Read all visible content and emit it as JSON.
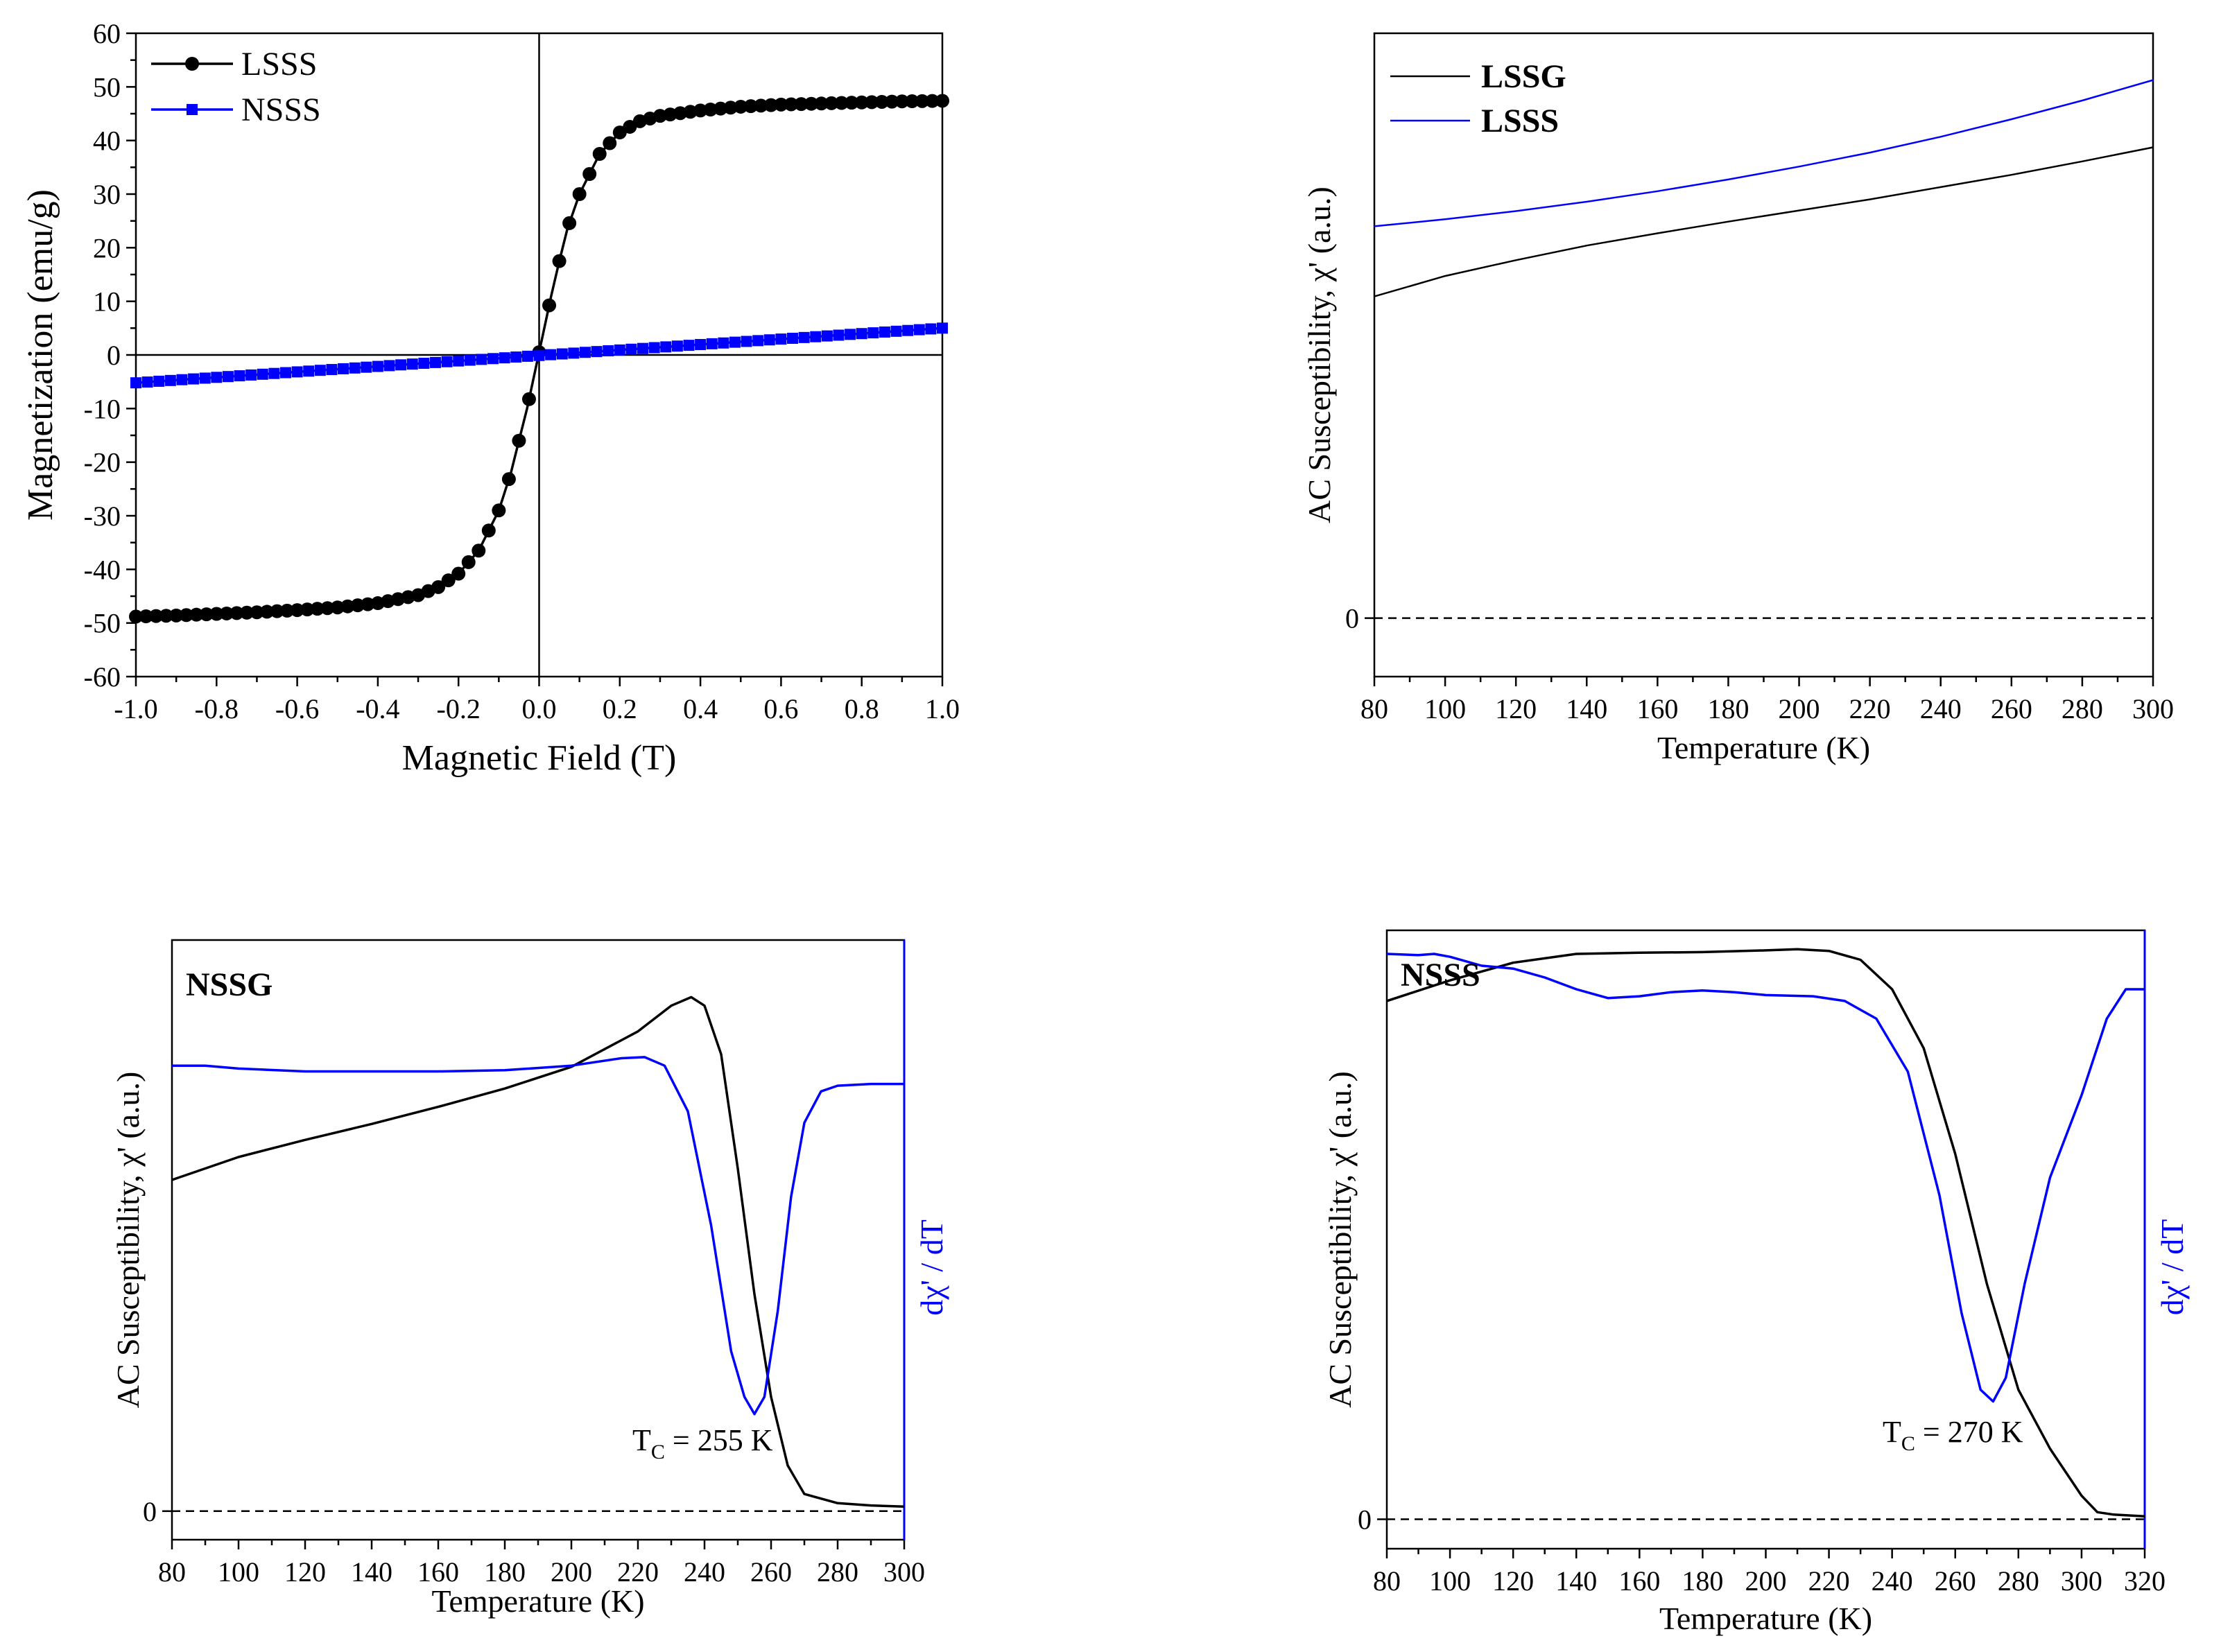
{
  "chart_data": [
    {
      "type": "line",
      "panel": "top-left",
      "xlabel": "Magnetic Field (T)",
      "ylabel": "Magnetization (emu/g)",
      "xlim": [
        -1.0,
        1.0
      ],
      "ylim": [
        -60,
        60
      ],
      "xticks": [
        "-1.0",
        "-0.8",
        "-0.6",
        "-0.4",
        "-0.2",
        "0.0",
        "0.2",
        "0.4",
        "0.6",
        "0.8",
        "1.0"
      ],
      "yticks": [
        "60",
        "50",
        "40",
        "30",
        "20",
        "10",
        "0",
        "-10",
        "-20",
        "-30",
        "-40",
        "-50",
        "-60"
      ],
      "legend_position": "top-left",
      "series": [
        {
          "name": "LSSS",
          "color": "#000000",
          "marker": "circle",
          "x": [
            -1.0,
            -0.9,
            -0.8,
            -0.7,
            -0.6,
            -0.5,
            -0.4,
            -0.3,
            -0.25,
            -0.2,
            -0.15,
            -0.1,
            -0.07,
            -0.05,
            -0.03,
            -0.01,
            0.0,
            0.01,
            0.03,
            0.05,
            0.07,
            0.1,
            0.15,
            0.2,
            0.25,
            0.3,
            0.4,
            0.5,
            0.6,
            0.7,
            0.8,
            0.9,
            1.0
          ],
          "y": [
            -48.8,
            -48.6,
            -48.3,
            -48.0,
            -47.6,
            -47.1,
            -46.3,
            -44.8,
            -43.3,
            -40.8,
            -36.5,
            -29.0,
            -22.0,
            -16.0,
            -10.0,
            -3.0,
            0.5,
            4.0,
            11.0,
            17.5,
            23.5,
            30.0,
            37.5,
            41.5,
            43.6,
            44.6,
            45.6,
            46.3,
            46.7,
            46.9,
            47.1,
            47.3,
            47.4
          ]
        },
        {
          "name": "NSSS",
          "color": "#0000ff",
          "marker": "square",
          "x": [
            -1.0,
            1.0
          ],
          "y": [
            -5.2,
            5.0
          ]
        }
      ]
    },
    {
      "type": "line",
      "panel": "top-right",
      "xlabel": "Temperature (K)",
      "ylabel": "AC Susceptibility,  χ' (a.u.)",
      "xlim": [
        80,
        300
      ],
      "ylim": [
        -0.1,
        1.0
      ],
      "xticks": [
        "80",
        "100",
        "120",
        "140",
        "160",
        "180",
        "200",
        "220",
        "240",
        "260",
        "280",
        "300"
      ],
      "yticks": [
        "0"
      ],
      "legend_position": "top-left",
      "series": [
        {
          "name": "LSSG",
          "color": "#000000",
          "x": [
            80,
            100,
            120,
            140,
            160,
            180,
            200,
            220,
            240,
            260,
            280,
            300
          ],
          "y": [
            0.55,
            0.585,
            0.612,
            0.637,
            0.658,
            0.678,
            0.697,
            0.716,
            0.737,
            0.758,
            0.781,
            0.805
          ]
        },
        {
          "name": "LSSS",
          "color": "#0000ff",
          "x": [
            80,
            100,
            120,
            140,
            160,
            180,
            200,
            220,
            240,
            260,
            280,
            300
          ],
          "y": [
            0.67,
            0.682,
            0.696,
            0.712,
            0.73,
            0.75,
            0.772,
            0.796,
            0.823,
            0.853,
            0.885,
            0.92
          ]
        }
      ]
    },
    {
      "type": "line",
      "panel": "bottom-left",
      "title": "NSSG",
      "xlabel": "Temperature (K)",
      "ylabel": "AC Susceptibility,  χ' (a.u.)",
      "y2label": "dχ' / dT",
      "annotation": "T",
      "annotation_sub": "C",
      "annotation_rest": " = 255 K",
      "xlim": [
        80,
        300
      ],
      "ylim": [
        -0.05,
        1.0
      ],
      "xticks": [
        "80",
        "100",
        "120",
        "140",
        "160",
        "180",
        "200",
        "220",
        "240",
        "260",
        "280",
        "300"
      ],
      "yticks": [
        "0"
      ],
      "series": [
        {
          "name": "χ'",
          "color": "#000000",
          "x": [
            80,
            100,
            120,
            140,
            160,
            180,
            200,
            220,
            230,
            236,
            240,
            245,
            250,
            255,
            260,
            265,
            270,
            280,
            290,
            300
          ],
          "y": [
            0.58,
            0.62,
            0.65,
            0.678,
            0.708,
            0.74,
            0.778,
            0.84,
            0.885,
            0.9,
            0.885,
            0.8,
            0.6,
            0.38,
            0.2,
            0.08,
            0.03,
            0.014,
            0.01,
            0.008
          ]
        },
        {
          "name": "dχ'/dT",
          "color": "#0000ff",
          "axis": "right",
          "x": [
            80,
            90,
            100,
            120,
            140,
            160,
            180,
            200,
            215,
            222,
            228,
            235,
            242,
            248,
            252,
            255,
            258,
            262,
            266,
            270,
            275,
            280,
            290,
            300
          ],
          "y": [
            0.78,
            0.78,
            0.775,
            0.77,
            0.77,
            0.77,
            0.772,
            0.78,
            0.793,
            0.795,
            0.78,
            0.7,
            0.5,
            0.28,
            0.2,
            0.17,
            0.2,
            0.35,
            0.55,
            0.68,
            0.735,
            0.745,
            0.748,
            0.748
          ]
        }
      ]
    },
    {
      "type": "line",
      "panel": "bottom-right",
      "title": "NSSS",
      "xlabel": "Temperature (K)",
      "ylabel": "AC Susceptibility,  χ' (a.u.)",
      "y2label": "dχ' / dT",
      "annotation": "T",
      "annotation_sub": "C",
      "annotation_rest": " = 270 K",
      "xlim": [
        80,
        320
      ],
      "ylim": [
        -0.05,
        1.0
      ],
      "xticks": [
        "80",
        "100",
        "120",
        "140",
        "160",
        "180",
        "200",
        "220",
        "240",
        "260",
        "280",
        "300",
        "320"
      ],
      "yticks": [
        "0"
      ],
      "series": [
        {
          "name": "χ'",
          "color": "#000000",
          "x": [
            80,
            100,
            120,
            140,
            160,
            180,
            200,
            210,
            220,
            230,
            240,
            250,
            260,
            270,
            280,
            290,
            300,
            305,
            310,
            320
          ],
          "y": [
            0.88,
            0.915,
            0.945,
            0.96,
            0.962,
            0.963,
            0.966,
            0.968,
            0.965,
            0.95,
            0.9,
            0.8,
            0.62,
            0.4,
            0.22,
            0.12,
            0.04,
            0.012,
            0.008,
            0.005
          ]
        },
        {
          "name": "dχ'/dT",
          "color": "#0000ff",
          "axis": "right",
          "x": [
            80,
            90,
            95,
            100,
            110,
            120,
            130,
            140,
            150,
            160,
            170,
            180,
            190,
            200,
            215,
            225,
            235,
            245,
            255,
            262,
            268,
            272,
            276,
            282,
            290,
            300,
            308,
            314,
            320
          ],
          "y": [
            0.96,
            0.958,
            0.96,
            0.955,
            0.94,
            0.935,
            0.92,
            0.9,
            0.885,
            0.888,
            0.895,
            0.898,
            0.895,
            0.89,
            0.888,
            0.88,
            0.85,
            0.76,
            0.55,
            0.35,
            0.22,
            0.2,
            0.24,
            0.4,
            0.58,
            0.72,
            0.85,
            0.9,
            0.9
          ]
        }
      ]
    }
  ]
}
